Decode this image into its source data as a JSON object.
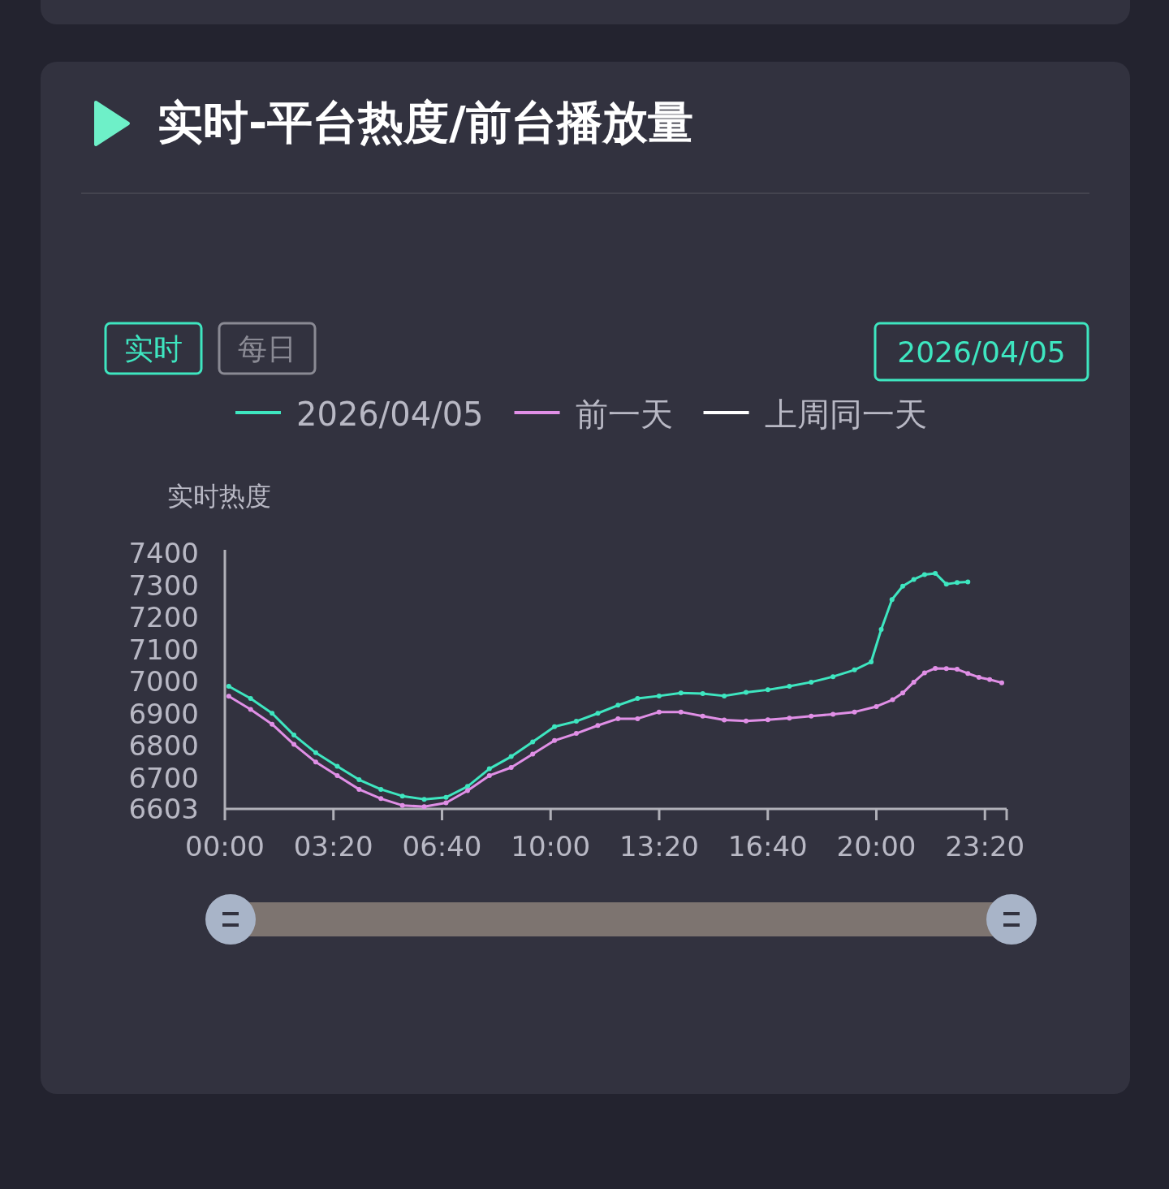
{
  "chart_data": {
    "type": "line",
    "title": "实时-平台热度/前台播放量",
    "ylabel": "实时热度",
    "annotations": [
      "实时",
      "每日",
      "2026/04/05"
    ],
    "xlim": [
      0,
      24
    ],
    "ylim": [
      6603,
      7400
    ],
    "xticks": [
      {
        "value": 0,
        "label": "00:00"
      },
      {
        "value": 3.333,
        "label": "03:20"
      },
      {
        "value": 6.667,
        "label": "06:40"
      },
      {
        "value": 10,
        "label": "10:00"
      },
      {
        "value": 13.333,
        "label": "13:20"
      },
      {
        "value": 16.667,
        "label": "16:40"
      },
      {
        "value": 20,
        "label": "20:00"
      },
      {
        "value": 23.333,
        "label": "23:20"
      },
      {
        "value": 24,
        "label": null
      }
    ],
    "yticks": [
      6603,
      6700,
      6800,
      6900,
      7000,
      7100,
      7200,
      7300,
      7400
    ],
    "marker": "circle",
    "line_style": "solid",
    "legend": "top",
    "series": [
      {
        "name": "2026/04/05",
        "color": "#3ee6c0",
        "x": [
          0.12,
          0.79,
          1.45,
          2.12,
          2.79,
          3.45,
          4.12,
          4.79,
          5.45,
          6.12,
          6.79,
          7.45,
          8.12,
          8.79,
          9.45,
          10.12,
          10.79,
          11.45,
          12.07,
          12.67,
          13.33,
          14,
          14.67,
          15.33,
          16,
          16.67,
          17.33,
          18,
          18.67,
          19.33,
          19.84,
          20.15,
          20.48,
          20.81,
          21.15,
          21.48,
          21.81,
          22.15,
          22.48,
          22.81
        ],
        "values": [
          6985,
          6947,
          6901,
          6833,
          6778,
          6736,
          6694,
          6664,
          6643,
          6633,
          6639,
          6673,
          6728,
          6766,
          6812,
          6859,
          6876,
          6901,
          6926,
          6947,
          6955,
          6964,
          6962,
          6955,
          6966,
          6974,
          6985,
          6998,
          7015,
          7036,
          7061,
          7162,
          7255,
          7297,
          7318,
          7333,
          7337,
          7303,
          7308,
          7310
        ]
      },
      {
        "name": "前一天",
        "color": "#e08fe6",
        "x": [
          0.12,
          0.79,
          1.45,
          2.12,
          2.79,
          3.45,
          4.12,
          4.79,
          5.45,
          6.12,
          6.79,
          7.45,
          8.12,
          8.79,
          9.45,
          10.12,
          10.79,
          11.45,
          12.07,
          12.67,
          13.33,
          14,
          14.67,
          15.33,
          16,
          16.67,
          17.33,
          18,
          18.67,
          19.33,
          20.0,
          20.5,
          20.81,
          21.15,
          21.48,
          21.81,
          22.15,
          22.48,
          22.81,
          23.15,
          23.48,
          23.85
        ],
        "values": [
          6954,
          6913,
          6867,
          6804,
          6749,
          6707,
          6664,
          6635,
          6614,
          6610,
          6622,
          6660,
          6707,
          6732,
          6774,
          6816,
          6838,
          6863,
          6884,
          6884,
          6905,
          6905,
          6892,
          6880,
          6877,
          6881,
          6886,
          6892,
          6898,
          6905,
          6922,
          6943,
          6964,
          6998,
          7027,
          7041,
          7040,
          7038,
          7025,
          7013,
          7006,
          6996
        ]
      },
      {
        "name": "上周同一天",
        "color": "#ffffff"
      }
    ]
  }
}
